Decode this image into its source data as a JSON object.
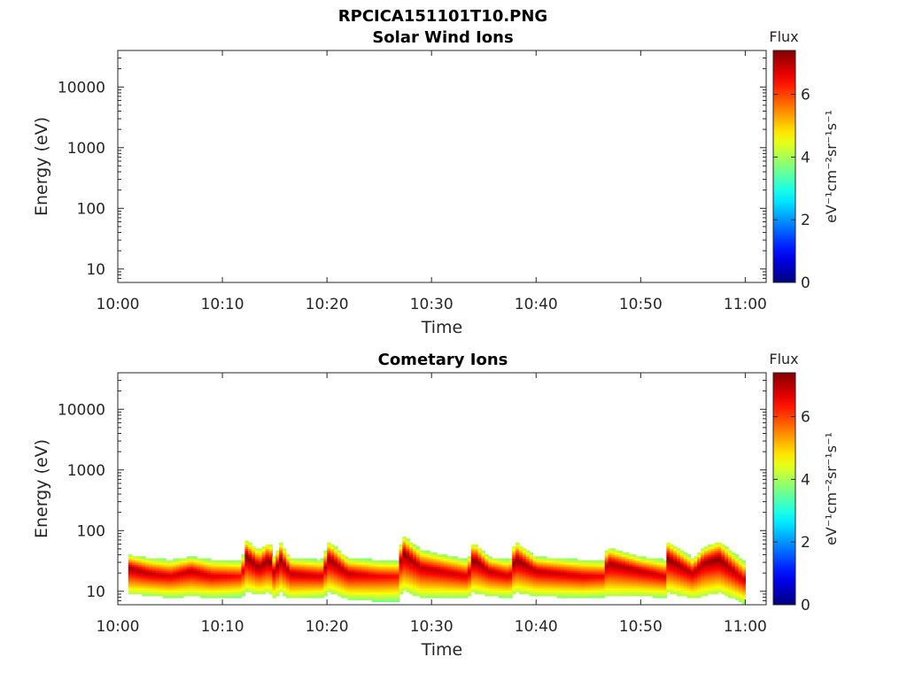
{
  "figure_title": "RPCICA151101T10.PNG",
  "chart_data": [
    {
      "type": "heatmap",
      "title": "Solar Wind Ions",
      "xlabel": "Time",
      "ylabel": "Energy (eV)",
      "xlim": [
        "10:00",
        "11:02"
      ],
      "x_ticks": [
        "10:00",
        "10:10",
        "10:20",
        "10:30",
        "10:40",
        "10:50",
        "11:00"
      ],
      "ylim": [
        6,
        40000
      ],
      "y_scale": "log",
      "y_ticks": [
        "10",
        "100",
        "1000",
        "10000"
      ],
      "colorbar": {
        "title": "Flux",
        "label": "eV⁻¹cm⁻²sr⁻¹s⁻¹",
        "range": [
          0,
          7.4
        ],
        "ticks": [
          "0",
          "2",
          "4",
          "6"
        ],
        "colormap": "jet"
      },
      "data": []
    },
    {
      "type": "heatmap",
      "title": "Cometary Ions",
      "xlabel": "Time",
      "ylabel": "Energy (eV)",
      "xlim": [
        "10:00",
        "11:02"
      ],
      "x_ticks": [
        "10:00",
        "10:10",
        "10:20",
        "10:30",
        "10:40",
        "10:50",
        "11:00"
      ],
      "ylim": [
        6,
        40000
      ],
      "y_scale": "log",
      "y_ticks": [
        "10",
        "100",
        "1000",
        "10000"
      ],
      "colorbar": {
        "title": "Flux",
        "label": "eV⁻¹cm⁻²sr⁻¹s⁻¹",
        "range": [
          0,
          7.4
        ],
        "ticks": [
          "0",
          "2",
          "4",
          "6"
        ],
        "colormap": "jet"
      },
      "data_range": {
        "start": "10:01",
        "end": "11:00"
      },
      "band_profile": {
        "time_min": [
          1,
          3,
          5,
          7,
          9,
          11.9,
          12.2,
          13.5,
          14.5,
          15,
          15.5,
          16.5,
          19.5,
          20.2,
          22,
          25,
          26.8,
          27.2,
          29,
          33.5,
          34,
          35.5,
          37.5,
          38,
          40,
          44.5,
          46.5,
          46.8,
          50,
          52.3,
          52.6,
          55,
          56,
          57.5,
          60
        ],
        "peak_energy_eV": [
          25,
          20,
          18,
          22,
          18,
          18,
          40,
          25,
          35,
          20,
          35,
          20,
          18,
          35,
          20,
          18,
          18,
          45,
          25,
          18,
          35,
          22,
          18,
          35,
          22,
          18,
          18,
          30,
          22,
          18,
          35,
          20,
          30,
          35,
          15
        ],
        "low_edge_eV": [
          12,
          11,
          10,
          11,
          10,
          10,
          15,
          12,
          14,
          10,
          14,
          10,
          10,
          14,
          10,
          9,
          9,
          16,
          11,
          10,
          14,
          11,
          10,
          14,
          11,
          10,
          10,
          12,
          11,
          10,
          14,
          10,
          12,
          14,
          8
        ],
        "high_edge_eV": [
          35,
          30,
          28,
          32,
          28,
          28,
          60,
          40,
          55,
          30,
          55,
          30,
          28,
          55,
          30,
          28,
          28,
          70,
          40,
          28,
          55,
          32,
          28,
          55,
          32,
          28,
          28,
          45,
          32,
          28,
          55,
          30,
          45,
          55,
          25
        ],
        "peak_flux": [
          7.2,
          7.0,
          6.8,
          7.0,
          6.8,
          6.5,
          7.4,
          7.2,
          7.4,
          7.0,
          7.4,
          7.0,
          6.8,
          7.3,
          7.0,
          6.6,
          6.5,
          7.4,
          7.0,
          6.8,
          7.4,
          7.0,
          6.8,
          7.4,
          7.0,
          6.8,
          6.6,
          7.2,
          7.0,
          6.8,
          7.4,
          7.0,
          7.2,
          7.4,
          6.8
        ]
      }
    }
  ]
}
